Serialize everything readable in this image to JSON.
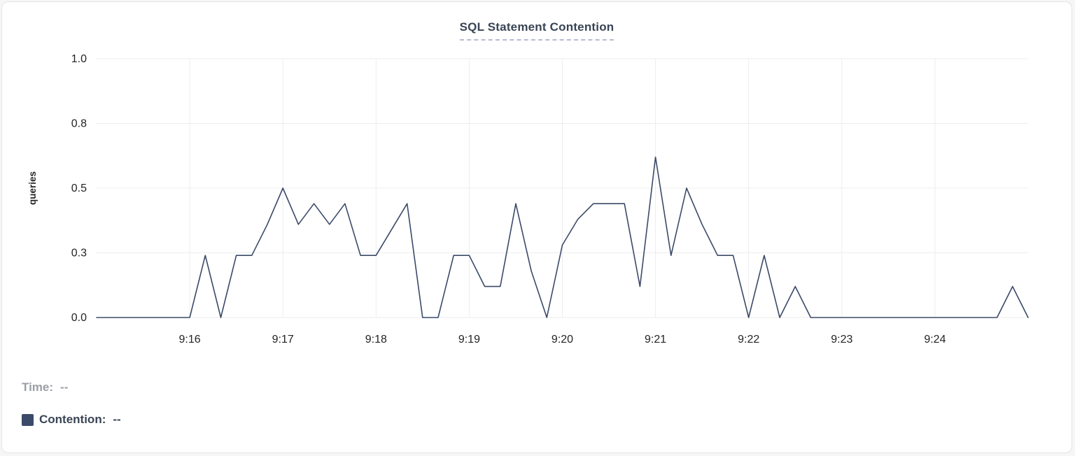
{
  "title": "SQL Statement Contention",
  "ylabel": "queries",
  "legend": {
    "time_label": "Time:",
    "time_value": "--",
    "contention_label": "Contention:",
    "contention_value": "--"
  },
  "colors": {
    "line": "#3b4a68",
    "title": "#394455",
    "grid": "#ededee",
    "axis_text": "#242424",
    "legend_muted": "#9a9ea6",
    "swatch": "#3b4a68",
    "title_underline": "#b7bbd2"
  },
  "chart_data": {
    "type": "line",
    "title": "SQL Statement Contention",
    "xlabel": "",
    "ylabel": "queries",
    "x_unit": "seconds since 9:15",
    "x_domain": [
      0,
      600
    ],
    "y_domain": [
      0,
      1
    ],
    "grid": true,
    "legend_position": "bottom-left",
    "y_ticks": [
      {
        "v": 0,
        "label": "0.0"
      },
      {
        "v": 0.25,
        "label": "0.3"
      },
      {
        "v": 0.5,
        "label": "0.5"
      },
      {
        "v": 0.75,
        "label": "0.8"
      },
      {
        "v": 1,
        "label": "1.0"
      }
    ],
    "x_ticks": [
      {
        "v": 60,
        "label": "9:16"
      },
      {
        "v": 120,
        "label": "9:17"
      },
      {
        "v": 180,
        "label": "9:18"
      },
      {
        "v": 240,
        "label": "9:19"
      },
      {
        "v": 300,
        "label": "9:20"
      },
      {
        "v": 360,
        "label": "9:21"
      },
      {
        "v": 420,
        "label": "9:22"
      },
      {
        "v": 480,
        "label": "9:23"
      },
      {
        "v": 540,
        "label": "9:24"
      }
    ],
    "series": [
      {
        "name": "Contention",
        "points": [
          [
            0,
            0
          ],
          [
            60,
            0
          ],
          [
            70,
            0.24
          ],
          [
            80,
            0
          ],
          [
            90,
            0.24
          ],
          [
            100,
            0.24
          ],
          [
            110,
            0.36
          ],
          [
            120,
            0.5
          ],
          [
            130,
            0.36
          ],
          [
            140,
            0.44
          ],
          [
            150,
            0.36
          ],
          [
            160,
            0.44
          ],
          [
            170,
            0.24
          ],
          [
            180,
            0.24
          ],
          [
            200,
            0.44
          ],
          [
            210,
            0
          ],
          [
            220,
            0
          ],
          [
            230,
            0.24
          ],
          [
            240,
            0.24
          ],
          [
            250,
            0.12
          ],
          [
            260,
            0.12
          ],
          [
            270,
            0.44
          ],
          [
            280,
            0.18
          ],
          [
            290,
            0
          ],
          [
            300,
            0.28
          ],
          [
            310,
            0.38
          ],
          [
            320,
            0.44
          ],
          [
            330,
            0.44
          ],
          [
            340,
            0.44
          ],
          [
            350,
            0.12
          ],
          [
            360,
            0.62
          ],
          [
            370,
            0.24
          ],
          [
            380,
            0.5
          ],
          [
            390,
            0.36
          ],
          [
            400,
            0.24
          ],
          [
            410,
            0.24
          ],
          [
            420,
            0
          ],
          [
            430,
            0.24
          ],
          [
            440,
            0
          ],
          [
            450,
            0.12
          ],
          [
            460,
            0
          ],
          [
            580,
            0
          ],
          [
            590,
            0.12
          ],
          [
            600,
            0
          ]
        ]
      }
    ]
  }
}
